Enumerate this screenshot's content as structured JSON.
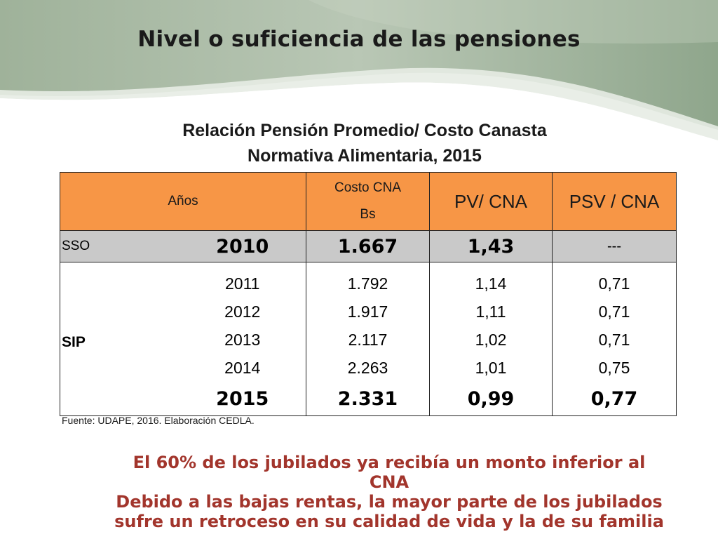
{
  "slide": {
    "title": "Nivel o suficiencia de las pensiones"
  },
  "table": {
    "title_line1": "Relación Pensión Promedio/ Costo Canasta",
    "title_line2": "Normativa Alimentaria, 2015",
    "headers": {
      "years": "Años",
      "cost_line1": "Costo CNA",
      "cost_line2": "Bs",
      "pv": "PV/ CNA",
      "psv": "PSV / CNA"
    },
    "sso": {
      "label": "SSO",
      "year": "2010",
      "cost": "1.667",
      "pv": "1,43",
      "psv": "---"
    },
    "sip": {
      "label": "SIP",
      "rows": [
        {
          "year": "2011",
          "cost": "1.792",
          "pv": "1,14",
          "psv": "0,71"
        },
        {
          "year": "2012",
          "cost": "1.917",
          "pv": "1,11",
          "psv": "0,71"
        },
        {
          "year": "2013",
          "cost": "2.117",
          "pv": "1,02",
          "psv": "0,71"
        },
        {
          "year": "2014",
          "cost": "2.263",
          "pv": "1,01",
          "psv": "0,75"
        },
        {
          "year": "2015",
          "cost": "2.331",
          "pv": "0,99",
          "psv": "0,77"
        }
      ]
    },
    "source": "Fuente: UDAPE, 2016. Elaboración CEDLA."
  },
  "conclusion": {
    "line1": "El 60% de los jubilados ya recibía un monto inferior al",
    "line2": "CNA",
    "line3": "Debido a las bajas rentas, la mayor parte de los jubilados",
    "line4": "sufre un retroceso en su calidad de vida y la de su familia"
  },
  "colors": {
    "header_fill": "#f79646",
    "sso_fill": "#c9c9c9",
    "conclusion_text": "#a2352c"
  }
}
